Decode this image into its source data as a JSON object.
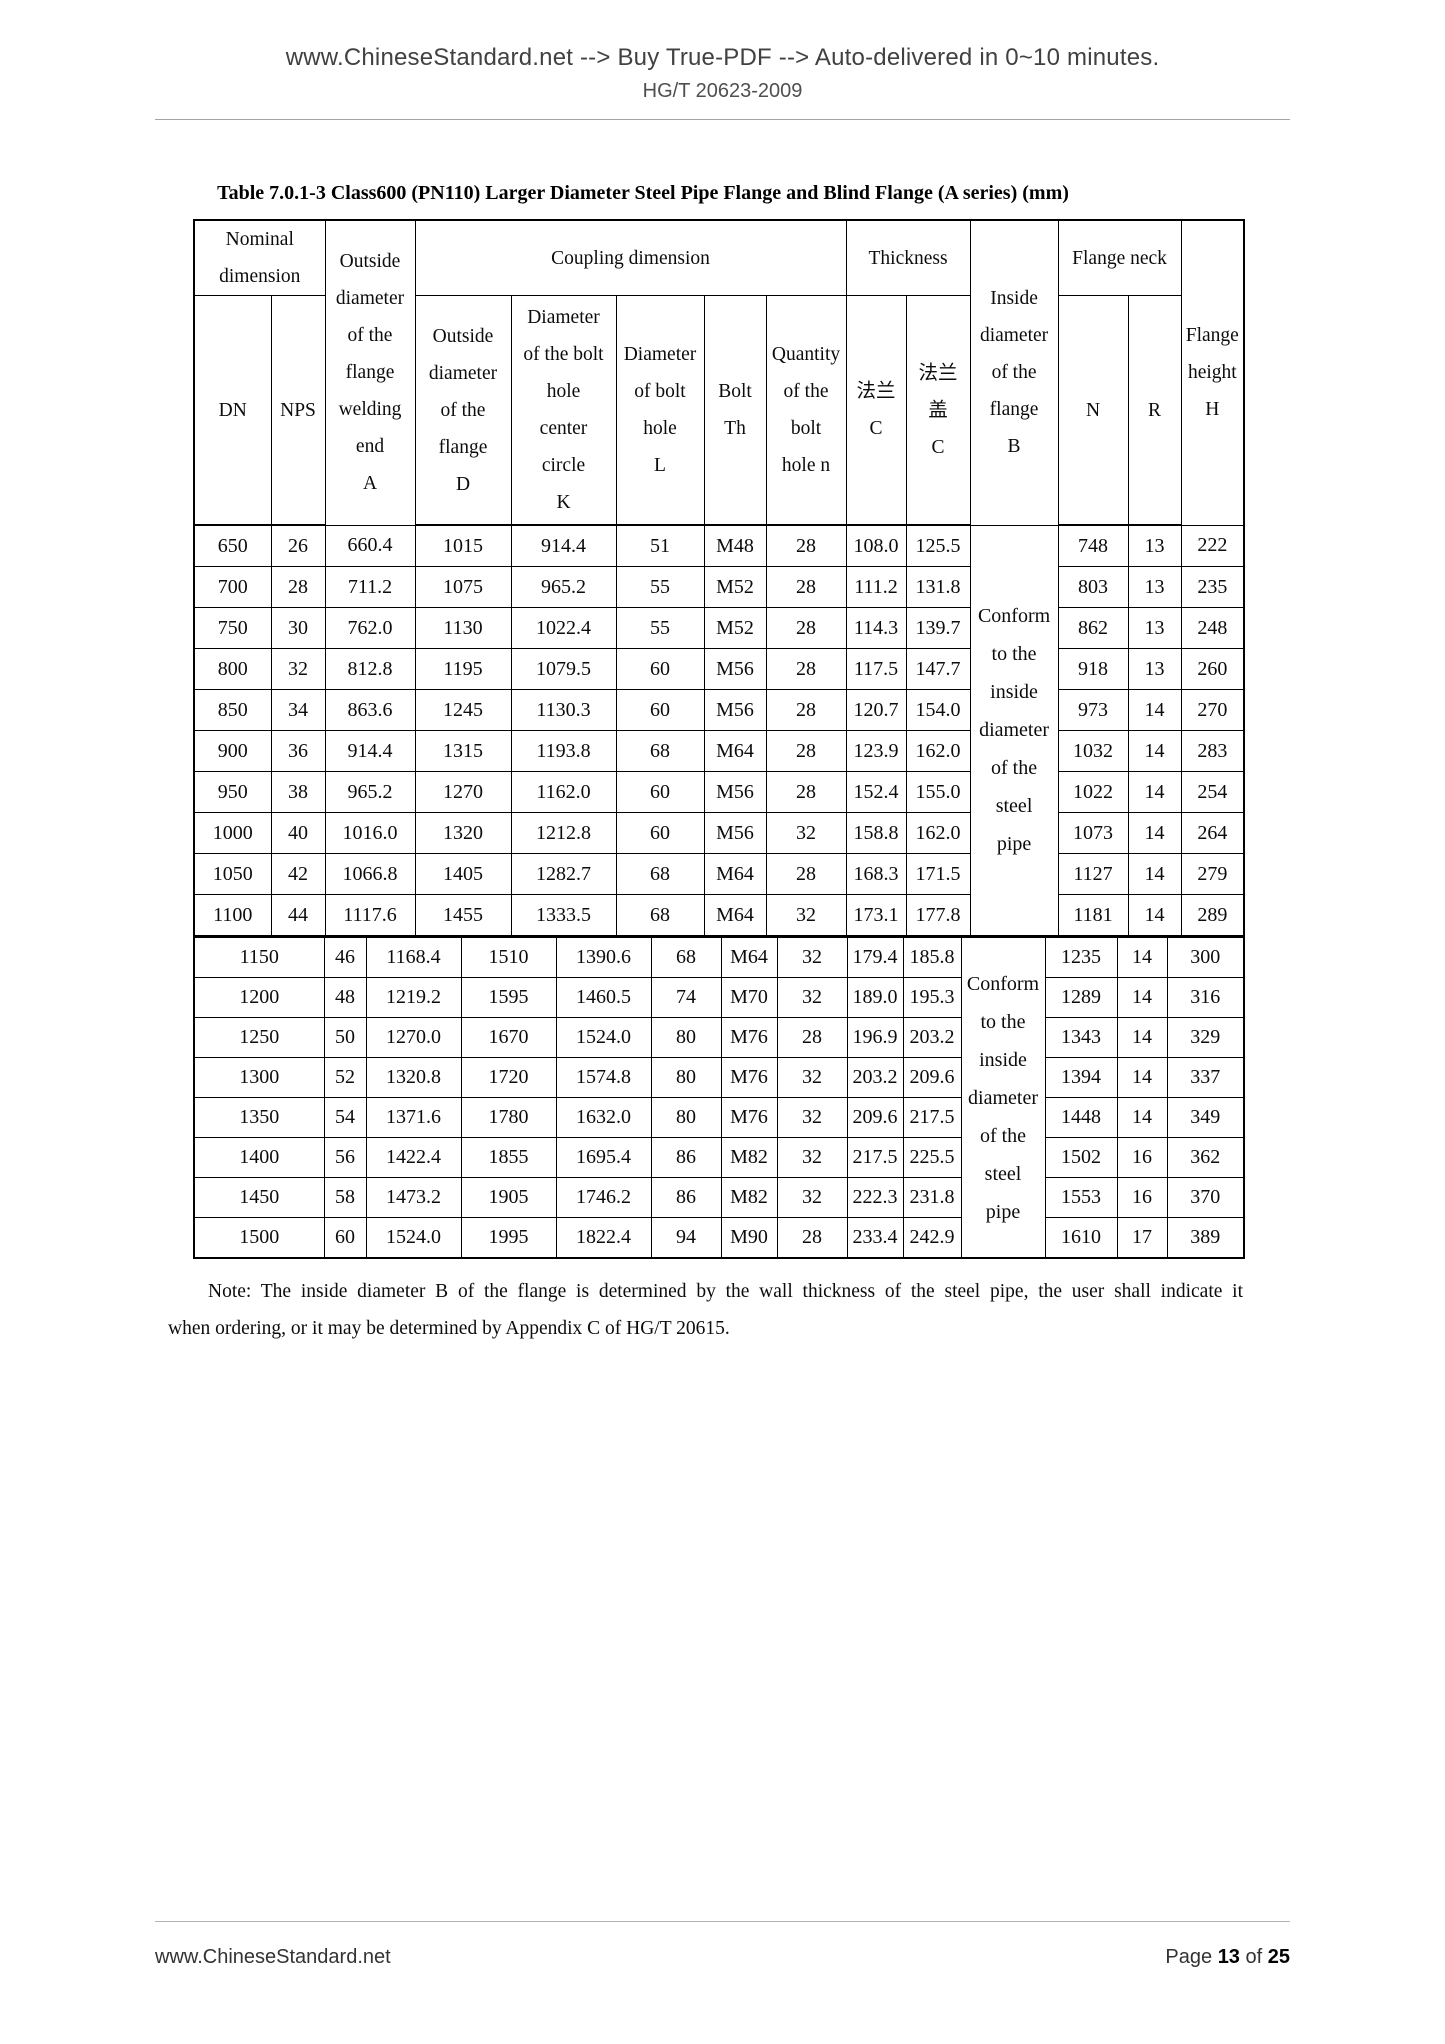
{
  "page_header": {
    "promo": "www.ChineseStandard.net --> Buy True-PDF --> Auto-delivered in 0~10 minutes.",
    "standard_code": "HG/T 20623-2009"
  },
  "table": {
    "title": "Table 7.0.1-3 Class600 (PN110) Larger Diameter Steel Pipe Flange and Blind Flange (A series) (mm)",
    "header": {
      "nominal_dimension": "Nominal\ndimension",
      "dn": "DN",
      "nps": "NPS",
      "welding_end_a": "Outside\ndiameter\nof the\nflange\nwelding\nend\nA",
      "coupling_dimension": "Coupling dimension",
      "flange_od_d": "Outside\ndiameter\nof the\nflange\nD",
      "bolt_circle_k": "Diameter\nof the bolt\nhole\ncenter\ncircle\nK",
      "bolt_hole_l": "Diameter\nof bolt\nhole\nL",
      "bolt_th": "Bolt\nTh",
      "bolt_qty_n": "Quantity\nof the\nbolt\nhole n",
      "thickness": "Thickness",
      "thickness_flange_c": "法兰\nC",
      "thickness_cover_c": "法兰\n盖\nC",
      "inside_diameter_b": "Inside\ndiameter\nof the\nflange\nB",
      "flange_neck": "Flange neck",
      "neck_n": "N",
      "neck_r": "R",
      "flange_height_h": "Flange\nheight\nH"
    },
    "conform_text": "Conform\nto the\ninside\ndiameter\nof the\nsteel\npipe",
    "block1_rows": [
      [
        "650",
        "26",
        "660.4",
        "1015",
        "914.4",
        "51",
        "M48",
        "28",
        "108.0",
        "125.5",
        "748",
        "13",
        "222"
      ],
      [
        "700",
        "28",
        "711.2",
        "1075",
        "965.2",
        "55",
        "M52",
        "28",
        "111.2",
        "131.8",
        "803",
        "13",
        "235"
      ],
      [
        "750",
        "30",
        "762.0",
        "1130",
        "1022.4",
        "55",
        "M52",
        "28",
        "114.3",
        "139.7",
        "862",
        "13",
        "248"
      ],
      [
        "800",
        "32",
        "812.8",
        "1195",
        "1079.5",
        "60",
        "M56",
        "28",
        "117.5",
        "147.7",
        "918",
        "13",
        "260"
      ],
      [
        "850",
        "34",
        "863.6",
        "1245",
        "1130.3",
        "60",
        "M56",
        "28",
        "120.7",
        "154.0",
        "973",
        "14",
        "270"
      ],
      [
        "900",
        "36",
        "914.4",
        "1315",
        "1193.8",
        "68",
        "M64",
        "28",
        "123.9",
        "162.0",
        "1032",
        "14",
        "283"
      ],
      [
        "950",
        "38",
        "965.2",
        "1270",
        "1162.0",
        "60",
        "M56",
        "28",
        "152.4",
        "155.0",
        "1022",
        "14",
        "254"
      ],
      [
        "1000",
        "40",
        "1016.0",
        "1320",
        "1212.8",
        "60",
        "M56",
        "32",
        "158.8",
        "162.0",
        "1073",
        "14",
        "264"
      ],
      [
        "1050",
        "42",
        "1066.8",
        "1405",
        "1282.7",
        "68",
        "M64",
        "28",
        "168.3",
        "171.5",
        "1127",
        "14",
        "279"
      ],
      [
        "1100",
        "44",
        "1117.6",
        "1455",
        "1333.5",
        "68",
        "M64",
        "32",
        "173.1",
        "177.8",
        "1181",
        "14",
        "289"
      ]
    ],
    "block2_rows": [
      [
        "1150",
        "46",
        "1168.4",
        "1510",
        "1390.6",
        "68",
        "M64",
        "32",
        "179.4",
        "185.8",
        "1235",
        "14",
        "300"
      ],
      [
        "1200",
        "48",
        "1219.2",
        "1595",
        "1460.5",
        "74",
        "M70",
        "32",
        "189.0",
        "195.3",
        "1289",
        "14",
        "316"
      ],
      [
        "1250",
        "50",
        "1270.0",
        "1670",
        "1524.0",
        "80",
        "M76",
        "28",
        "196.9",
        "203.2",
        "1343",
        "14",
        "329"
      ],
      [
        "1300",
        "52",
        "1320.8",
        "1720",
        "1574.8",
        "80",
        "M76",
        "32",
        "203.2",
        "209.6",
        "1394",
        "14",
        "337"
      ],
      [
        "1350",
        "54",
        "1371.6",
        "1780",
        "1632.0",
        "80",
        "M76",
        "32",
        "209.6",
        "217.5",
        "1448",
        "14",
        "349"
      ],
      [
        "1400",
        "56",
        "1422.4",
        "1855",
        "1695.4",
        "86",
        "M82",
        "32",
        "217.5",
        "225.5",
        "1502",
        "16",
        "362"
      ],
      [
        "1450",
        "58",
        "1473.2",
        "1905",
        "1746.2",
        "86",
        "M82",
        "32",
        "222.3",
        "231.8",
        "1553",
        "16",
        "370"
      ],
      [
        "1500",
        "60",
        "1524.0",
        "1995",
        "1822.4",
        "94",
        "M90",
        "28",
        "233.4",
        "242.9",
        "1610",
        "17",
        "389"
      ]
    ]
  },
  "note": {
    "line1": "Note: The inside diameter B of the flange is determined by the wall thickness of the steel pipe, the user shall indicate it",
    "line2": "when ordering, or it may be determined by Appendix C of HG/T 20615."
  },
  "page_footer": {
    "site": "www.ChineseStandard.net",
    "page_prefix": "Page",
    "page_current": "13",
    "page_of": "of",
    "page_total": "25"
  }
}
